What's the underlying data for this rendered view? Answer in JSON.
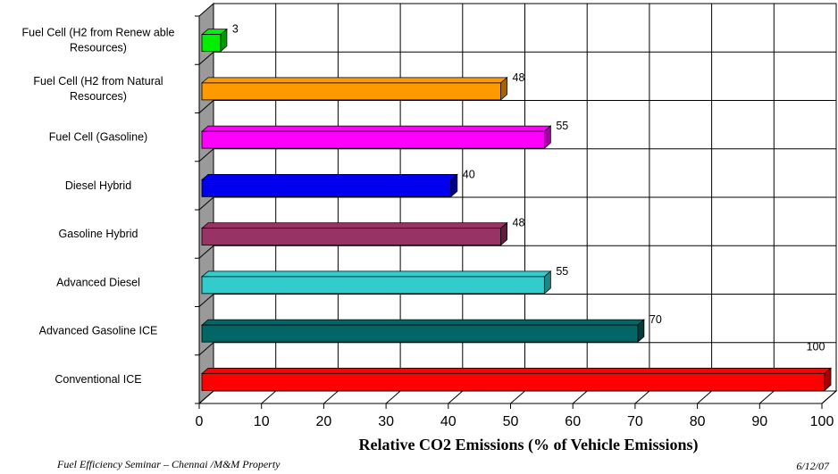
{
  "chart_data": {
    "type": "bar",
    "orientation": "horizontal",
    "categories": [
      "Fuel Cell (H2 from Renewable Resources)",
      "Fuel Cell (H2 from Natural Resources)",
      "Fuel Cell (Gasoline)",
      "Diesel Hybrid",
      "Gasoline Hybrid",
      "Advanced Diesel",
      "Advanced Gasoline ICE",
      "Conventional ICE"
    ],
    "category_lines": [
      [
        "Fuel Cell (H2 from Renew able",
        "Resources)"
      ],
      [
        "Fuel Cell (H2 from Natural",
        "Resources)"
      ],
      [
        "Fuel Cell (Gasoline)"
      ],
      [
        "Diesel Hybrid"
      ],
      [
        "Gasoline Hybrid"
      ],
      [
        "Advanced Diesel"
      ],
      [
        "Advanced Gasoline ICE"
      ],
      [
        "Conventional ICE"
      ]
    ],
    "values": [
      3,
      48,
      55,
      40,
      48,
      55,
      70,
      100
    ],
    "data_labels": [
      "3",
      "48",
      "55",
      "40",
      "48",
      "55",
      "70",
      "100"
    ],
    "colors": [
      "#00ee00",
      "#ff9900",
      "#ff00ff",
      "#0000ee",
      "#993366",
      "#33cccc",
      "#006666",
      "#ff0000"
    ],
    "side_colors": [
      "#009900",
      "#a66300",
      "#a600a6",
      "#00008a",
      "#5e1f3e",
      "#1f8585",
      "#003d3d",
      "#a60000"
    ],
    "xlim": [
      0,
      100
    ],
    "xticks": [
      0,
      10,
      20,
      30,
      40,
      50,
      60,
      70,
      80,
      90,
      100
    ],
    "xlabel": "Relative CO2 Emissions (% of  Vehicle Emissions)",
    "title": "",
    "grid": true,
    "style": "3d"
  },
  "footer": {
    "left": "Fuel Efficiency Seminar – Chennai  /M&M Property",
    "right": "6/12/07"
  }
}
